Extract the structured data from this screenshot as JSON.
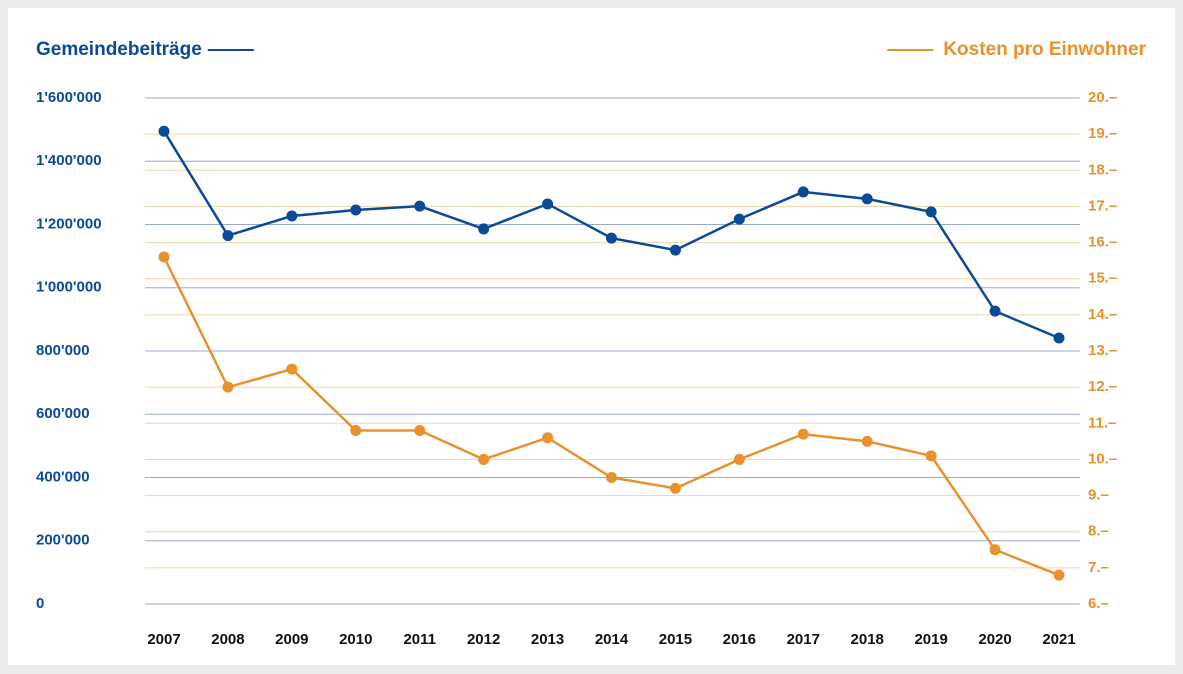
{
  "chart_data": {
    "type": "line",
    "categories": [
      "2007",
      "2008",
      "2009",
      "2010",
      "2011",
      "2012",
      "2013",
      "2014",
      "2015",
      "2016",
      "2017",
      "2018",
      "2019",
      "2020",
      "2021"
    ],
    "series": [
      {
        "name": "Gemeindebeiträge",
        "color": "#0b4a97",
        "axis": "y",
        "values": [
          1495000,
          1165000,
          1227000,
          1246000,
          1258000,
          1186000,
          1265000,
          1157000,
          1119000,
          1217000,
          1303000,
          1281000,
          1240000,
          926000,
          841000
        ]
      },
      {
        "name": "Kosten pro Einwohner",
        "color": "#e8912d",
        "axis": "y2",
        "values": [
          15.6,
          12.0,
          12.5,
          10.8,
          10.8,
          10.0,
          10.6,
          9.5,
          9.2,
          10.0,
          10.7,
          10.5,
          10.1,
          7.5,
          6.8
        ]
      }
    ],
    "ylim": [
      0,
      1600000
    ],
    "yticks": [
      0,
      {
        "value": 200000,
        "label": "200'000"
      },
      {
        "value": 400000,
        "label": "400'000"
      },
      {
        "value": 600000,
        "label": "600'000"
      },
      {
        "value": 800000,
        "label": "800'000"
      },
      {
        "value": 1000000,
        "label": "1'000'000"
      },
      {
        "value": 1200000,
        "label": "1'200'000"
      },
      {
        "value": 1400000,
        "label": "1'400'000"
      },
      {
        "value": 1600000,
        "label": "1'600'000"
      }
    ],
    "y2lim": [
      6,
      20
    ],
    "y2ticks": [
      {
        "value": 6,
        "label": "6.–"
      },
      {
        "value": 7,
        "label": "7.–"
      },
      {
        "value": 8,
        "label": "8.–"
      },
      {
        "value": 9,
        "label": "9.–"
      },
      {
        "value": 10,
        "label": "10.–"
      },
      {
        "value": 11,
        "label": "11.–"
      },
      {
        "value": 12,
        "label": "12.–"
      },
      {
        "value": 13,
        "label": "13.–"
      },
      {
        "value": 14,
        "label": "14.–"
      },
      {
        "value": 15,
        "label": "15.–"
      },
      {
        "value": 16,
        "label": "16.–"
      },
      {
        "value": 17,
        "label": "17.–"
      },
      {
        "value": 18,
        "label": "18.–"
      },
      {
        "value": 19,
        "label": "19.–"
      },
      {
        "value": 20,
        "label": "20.–"
      }
    ],
    "grid": true
  }
}
